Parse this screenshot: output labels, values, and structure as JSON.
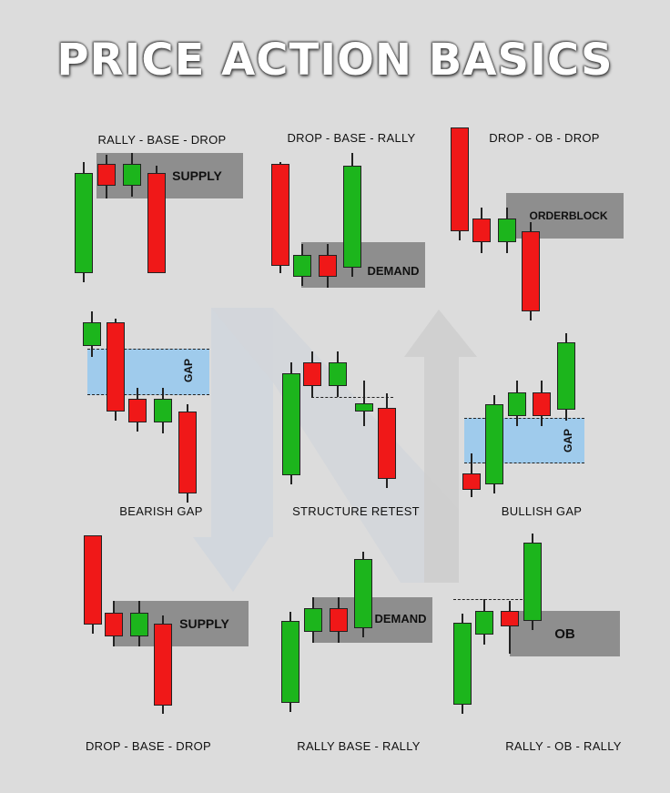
{
  "title": "PRICE ACTION BASICS",
  "colors": {
    "background": "#dcdcdc",
    "bullish_candle": "#1cb51c",
    "bearish_candle": "#f01818",
    "zone": "#8e8e8e",
    "gap_zone": "#9fcbec"
  },
  "panels": [
    {
      "label": "RALLY - BASE - DROP",
      "zone_label": "SUPPLY"
    },
    {
      "label": "DROP - BASE - RALLY",
      "zone_label": "DEMAND"
    },
    {
      "label": "DROP - OB - DROP",
      "zone_label": "ORDERBLOCK"
    },
    {
      "label": "BEARISH GAP",
      "zone_label": "GAP"
    },
    {
      "label": "STRUCTURE RETEST"
    },
    {
      "label": "BULLISH GAP",
      "zone_label": "GAP"
    },
    {
      "label": "DROP - BASE - DROP",
      "zone_label": "SUPPLY"
    },
    {
      "label": "RALLY BASE - RALLY",
      "zone_label": "DEMAND"
    },
    {
      "label": "RALLY - OB - RALLY",
      "zone_label": "OB"
    }
  ],
  "candle_types": {
    "rally_base_drop": [
      "bull",
      "bear",
      "bull",
      "bear"
    ],
    "drop_base_rally": [
      "bear",
      "bull",
      "bear",
      "bull"
    ],
    "drop_ob_drop": [
      "bear",
      "bear",
      "bull",
      "bear"
    ],
    "bearish_gap": [
      "bull",
      "bear",
      "bear",
      "bull",
      "bear"
    ],
    "structure_retest": [
      "bull",
      "bear",
      "bull",
      "bull",
      "bear"
    ],
    "bullish_gap": [
      "bear",
      "bull",
      "bull",
      "bear",
      "bull"
    ],
    "drop_base_drop": [
      "bear",
      "bear",
      "bull",
      "bear"
    ],
    "rally_base_rally": [
      "bull",
      "bull",
      "bear",
      "bull"
    ],
    "rally_ob_rally": [
      "bull",
      "bull",
      "bear",
      "bull"
    ]
  }
}
